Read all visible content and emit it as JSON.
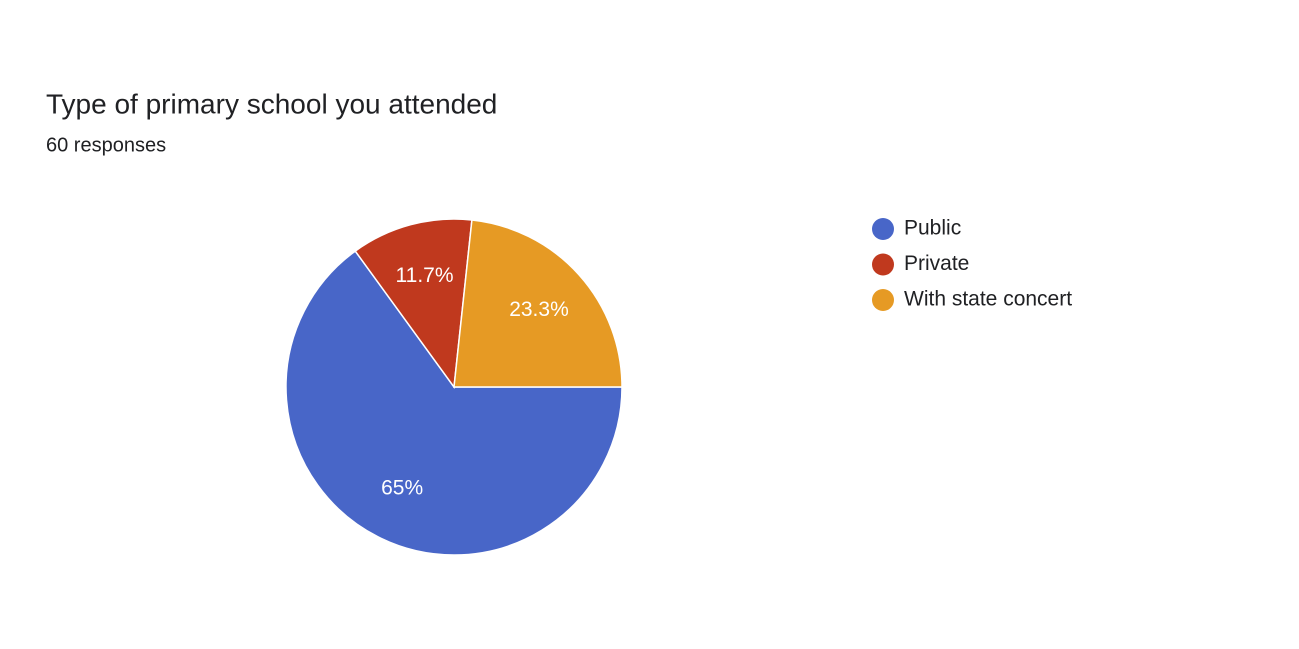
{
  "chart_data": {
    "type": "pie",
    "title": "Type of primary school you attended",
    "subtitle": "60 responses",
    "categories": [
      "Public",
      "Private",
      "With state concert"
    ],
    "values": [
      65,
      11.7,
      23.3
    ],
    "value_labels": [
      "65%",
      "11.7%",
      "23.3%"
    ],
    "colors": [
      "#4866c8",
      "#c0391e",
      "#e69a24"
    ]
  }
}
